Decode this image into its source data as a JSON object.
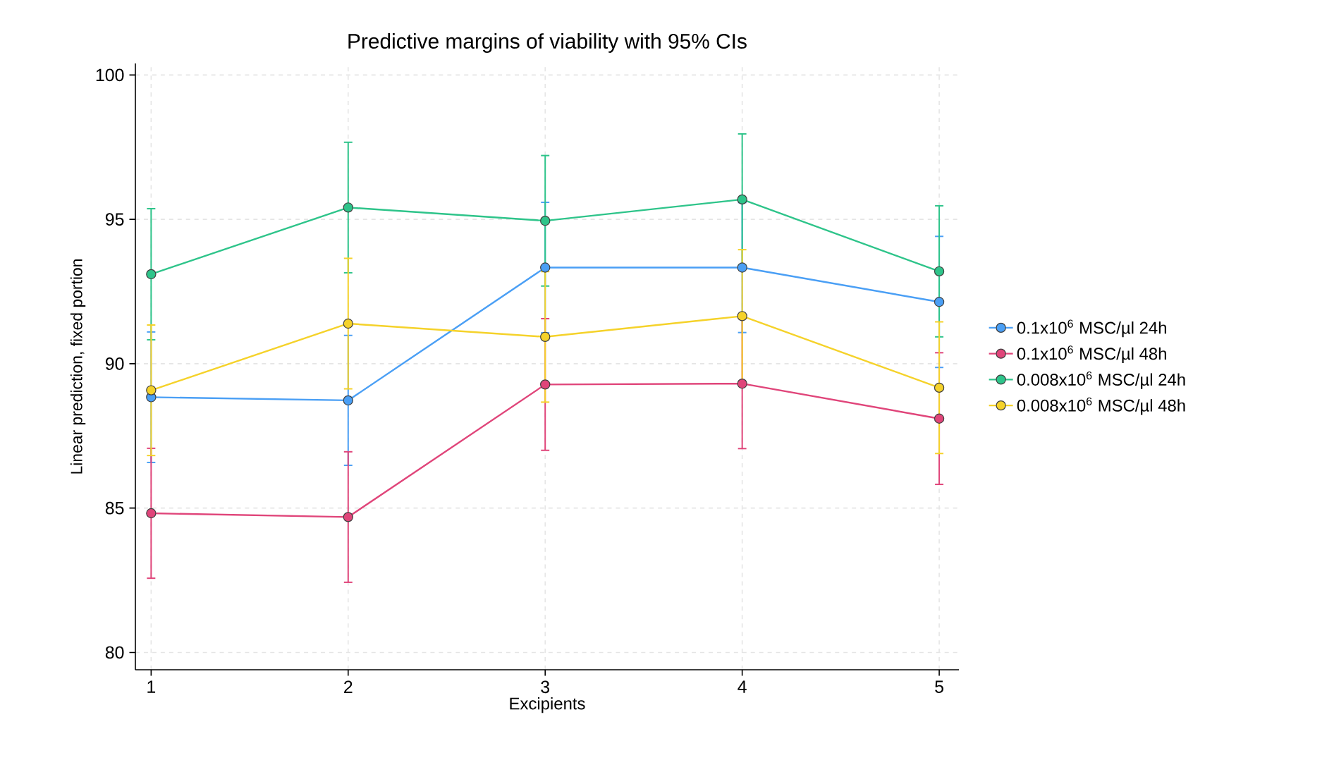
{
  "chart_data": {
    "type": "line",
    "title": "Predictive margins of viability with 95% CIs",
    "xlabel": "Excipients",
    "ylabel": "Linear prediction, fixed portion",
    "x": [
      1,
      2,
      3,
      4,
      5
    ],
    "series": [
      {
        "name": "0.1x10$^{6}$ MSC/µl 24h",
        "color": "#4a9ff5",
        "values": [
          88.84,
          88.73,
          93.33,
          93.33,
          92.14
        ],
        "errors": [
          2.26,
          2.25,
          2.26,
          2.25,
          2.27
        ]
      },
      {
        "name": "0.1x10$^{6}$ MSC/µl 48h",
        "color": "#e0457a",
        "values": [
          84.82,
          84.69,
          89.28,
          89.31,
          88.1
        ],
        "errors": [
          2.25,
          2.26,
          2.28,
          2.25,
          2.28
        ]
      },
      {
        "name": "0.008x10$^{6}$ MSC/µl 24h",
        "color": "#2ec48a",
        "values": [
          93.1,
          95.41,
          94.95,
          95.69,
          93.2
        ],
        "errors": [
          2.27,
          2.26,
          2.26,
          2.27,
          2.27
        ]
      },
      {
        "name": "0.008x10$^{6}$ MSC/µl 48h",
        "color": "#f5d22a",
        "values": [
          89.08,
          91.39,
          90.93,
          91.65,
          89.17
        ],
        "errors": [
          2.26,
          2.26,
          2.26,
          2.3,
          2.28
        ]
      }
    ],
    "xlim": [
      0.92,
      5.1
    ],
    "ylim": [
      79.4,
      100.4
    ],
    "xticks": [
      1,
      2,
      3,
      4,
      5
    ],
    "yticks": [
      80,
      85,
      90,
      95,
      100
    ],
    "grid": true,
    "legend": "right",
    "marker": "circle",
    "line_style": "solid"
  }
}
